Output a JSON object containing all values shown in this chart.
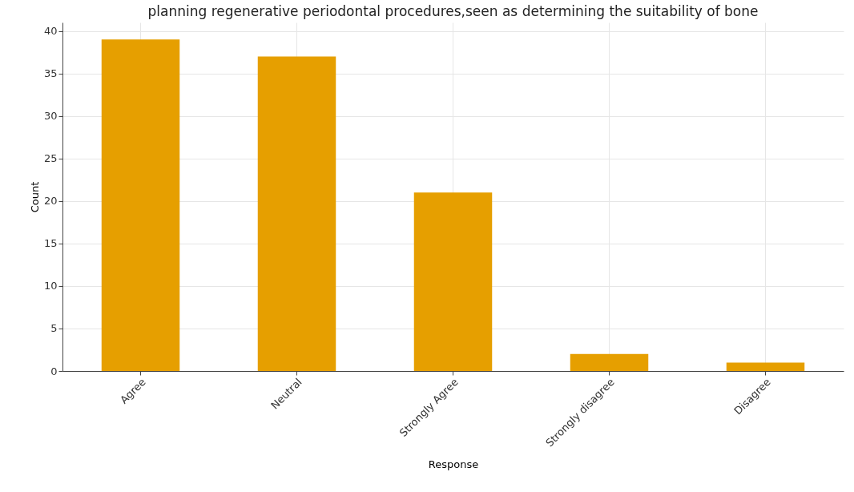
{
  "chart_data": {
    "type": "bar",
    "title": "planning regenerative periodontal procedures,seen as determining the suitability of bone",
    "xlabel": "Response",
    "ylabel": "Count",
    "categories": [
      "Agree",
      "Neutral",
      "Strongly Agree",
      "Strongly disagree",
      "Disagree"
    ],
    "values": [
      39,
      37,
      21,
      2,
      1
    ],
    "color": "#e69f00",
    "ylim": [
      0,
      41
    ],
    "yticks": [
      0,
      5,
      10,
      15,
      20,
      25,
      30,
      35,
      40
    ],
    "grid": true
  }
}
